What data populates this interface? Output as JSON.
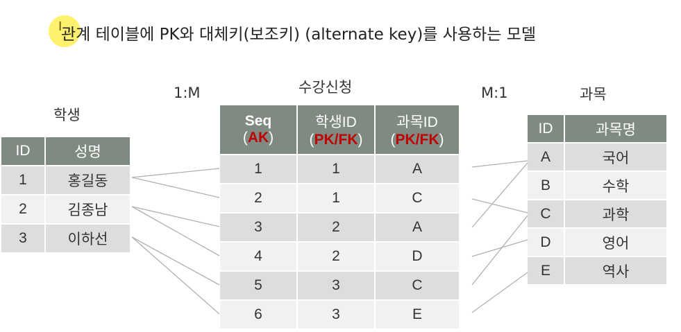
{
  "title": "관계 테이블에 PK와 대체키(보조키) (alternate key)를 사용하는 모델",
  "cursor_glyph": "I",
  "labels": {
    "students": "학생",
    "enrollments": "수강신청",
    "subjects": "과목",
    "rel_left": "1:M",
    "rel_right": "M:1"
  },
  "students": {
    "headers": [
      "ID",
      "성명"
    ],
    "rows": [
      [
        "1",
        "홍길동"
      ],
      [
        "2",
        "김종남"
      ],
      [
        "3",
        "이하선"
      ]
    ]
  },
  "enrollments": {
    "headers": [
      {
        "name": "Seq",
        "paren_open": "(",
        "key": "AK",
        "paren_close": ")"
      },
      {
        "name": "학생ID",
        "paren_open": "(",
        "key": "PK/FK",
        "paren_close": ")"
      },
      {
        "name": "과목ID",
        "paren_open": "(",
        "key": "PK/FK",
        "paren_close": ")"
      }
    ],
    "rows": [
      [
        "1",
        "1",
        "A"
      ],
      [
        "2",
        "1",
        "C"
      ],
      [
        "3",
        "2",
        "A"
      ],
      [
        "4",
        "2",
        "D"
      ],
      [
        "5",
        "3",
        "C"
      ],
      [
        "6",
        "3",
        "E"
      ]
    ]
  },
  "subjects": {
    "headers": [
      "ID",
      "과목명"
    ],
    "rows": [
      [
        "A",
        "국어"
      ],
      [
        "B",
        "수학"
      ],
      [
        "C",
        "과학"
      ],
      [
        "D",
        "영어"
      ],
      [
        "E",
        "역사"
      ]
    ]
  },
  "colors": {
    "header_bg": "#7f8a82",
    "row_dark": "#dcdedd",
    "row_light": "#f0f1f0",
    "key_red": "#c00000",
    "line": "#b0b0b0"
  }
}
